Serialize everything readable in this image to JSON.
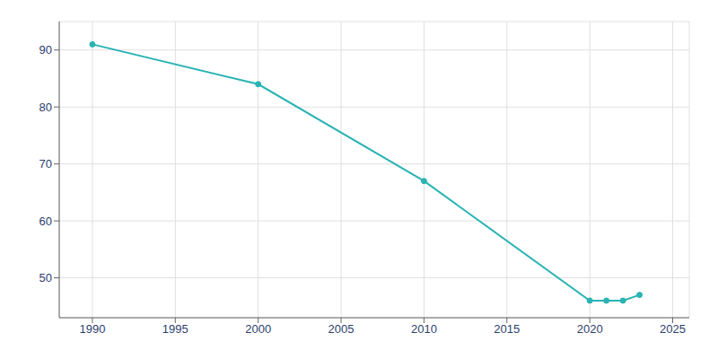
{
  "chart_data": {
    "type": "line",
    "x": [
      1990,
      2000,
      2010,
      2020,
      2021,
      2022,
      2023
    ],
    "values": [
      91,
      84,
      67,
      46,
      46,
      46,
      47
    ],
    "color": "#2ab3b3",
    "marker": "circle",
    "xlim": [
      1988,
      2026
    ],
    "ylim": [
      43,
      95
    ],
    "xticks": [
      1990,
      1995,
      2000,
      2005,
      2010,
      2015,
      2020,
      2025
    ],
    "yticks": [
      50,
      60,
      70,
      80,
      90
    ],
    "grid": true
  }
}
